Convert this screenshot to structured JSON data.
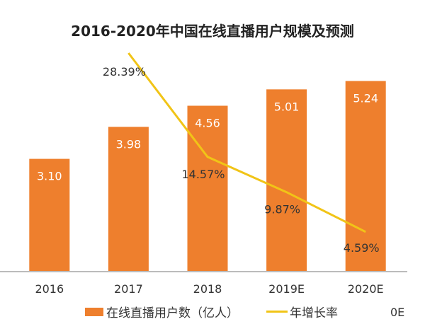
{
  "chart_data": {
    "type": "bar",
    "title": "2016-2020年中国在线直播用户规模及预测",
    "categories": [
      "2016",
      "2017",
      "2018",
      "2019E",
      "2020E"
    ],
    "series": [
      {
        "name": "在线直播用户数（亿人）",
        "type": "bar",
        "values": [
          3.1,
          3.98,
          4.56,
          5.01,
          5.24
        ],
        "labels": [
          "3.10",
          "3.98",
          "4.56",
          "5.01",
          "5.24"
        ],
        "color": "#ee7f2d"
      },
      {
        "name": "年增长率",
        "type": "line",
        "values": [
          null,
          28.39,
          14.57,
          9.87,
          4.59
        ],
        "labels": [
          "",
          "28.39%",
          "14.57%",
          "9.87%",
          "4.59%"
        ],
        "color": "#f1c417"
      }
    ],
    "ylim": [
      0,
      6.3
    ],
    "y2lim": [
      -0.7,
      29.8
    ],
    "grid": false,
    "legend": "bottom",
    "xlabel": "",
    "ylabel": ""
  },
  "extra_text": "0E"
}
